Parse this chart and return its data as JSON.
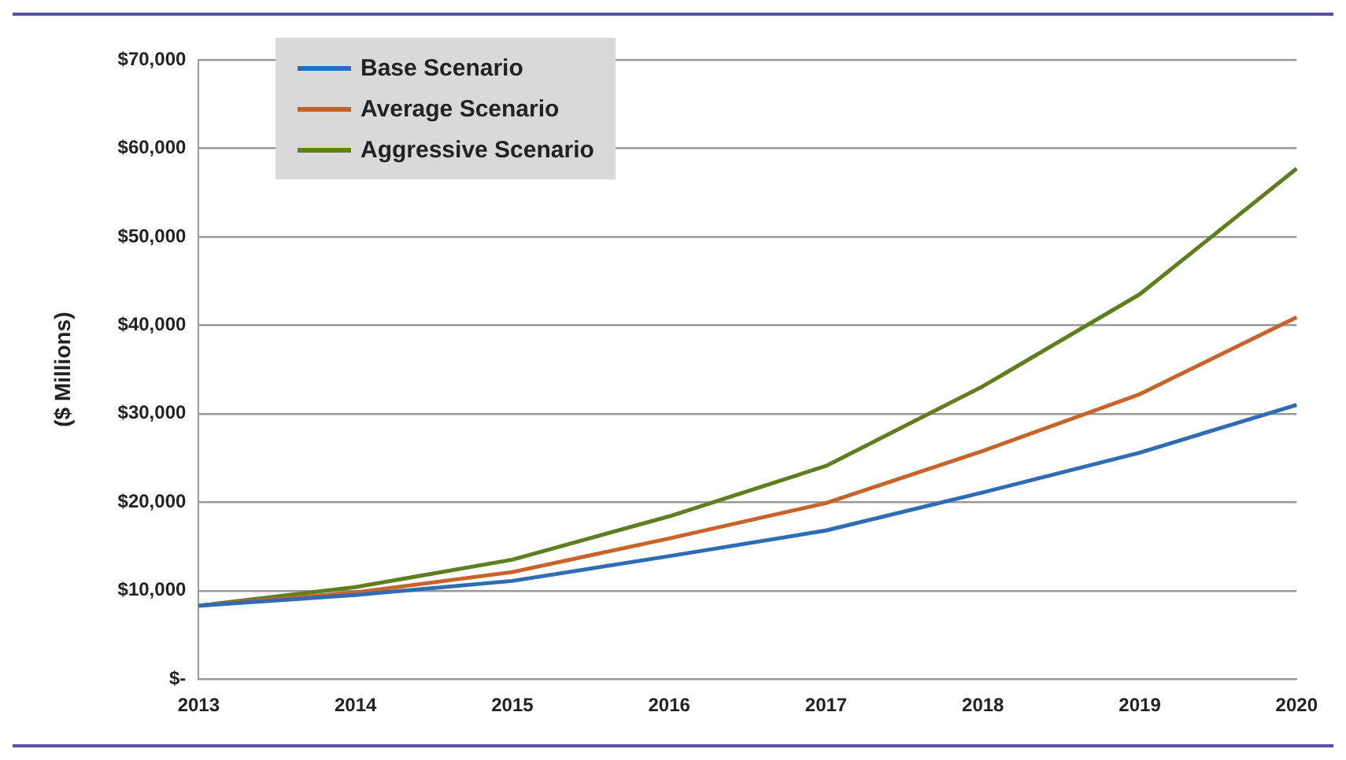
{
  "chart_data": {
    "type": "line",
    "ylabel": "($ Millions)",
    "categories": [
      "2013",
      "2014",
      "2015",
      "2016",
      "2017",
      "2018",
      "2019",
      "2020"
    ],
    "series": [
      {
        "name": "Base Scenario",
        "color": "#2e6db4",
        "values": [
          8300,
          9500,
          11100,
          13900,
          16800,
          21100,
          25600,
          31000
        ]
      },
      {
        "name": "Average Scenario",
        "color": "#c8642a",
        "values": [
          8300,
          9800,
          12100,
          15900,
          19900,
          25800,
          32200,
          40900
        ]
      },
      {
        "name": "Aggressive Scenario",
        "color": "#5f7f1e",
        "values": [
          8300,
          10400,
          13500,
          18400,
          24100,
          33100,
          43500,
          57700
        ]
      }
    ],
    "ylim": [
      0,
      70000
    ],
    "yticks": [
      {
        "value": 0,
        "label": "$-"
      },
      {
        "value": 10000,
        "label": "$10,000"
      },
      {
        "value": 20000,
        "label": "$20,000"
      },
      {
        "value": 30000,
        "label": "$30,000"
      },
      {
        "value": 40000,
        "label": "$40,000"
      },
      {
        "value": 50000,
        "label": "$50,000"
      },
      {
        "value": 60000,
        "label": "$60,000"
      },
      {
        "value": 70000,
        "label": "$70,000"
      }
    ],
    "grid": "y",
    "legend": "top left",
    "marker": "none",
    "line_style": "solid"
  }
}
